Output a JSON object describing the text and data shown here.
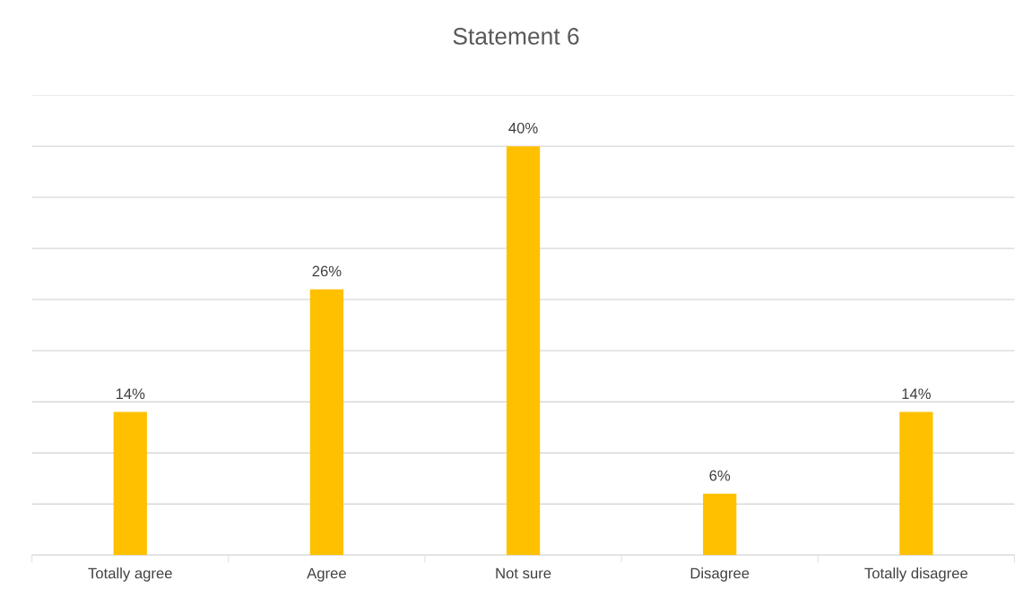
{
  "chart_data": {
    "type": "bar",
    "title": "Statement 6",
    "categories": [
      "Totally agree",
      "Agree",
      "Not sure",
      "Disagree",
      "Totally disagree"
    ],
    "values": [
      14,
      26,
      40,
      6,
      14
    ],
    "value_labels": [
      "14%",
      "26%",
      "40%",
      "6%",
      "14%"
    ],
    "color": "#ffc000",
    "ylim": [
      0,
      45
    ],
    "yticks": [
      {
        "value": 0,
        "label": null
      },
      {
        "value": 5,
        "label": null
      },
      {
        "value": 10,
        "label": null
      },
      {
        "value": 15,
        "label": null
      },
      {
        "value": 20,
        "label": null
      },
      {
        "value": 25,
        "label": null
      },
      {
        "value": 30,
        "label": null
      },
      {
        "value": 35,
        "label": null
      },
      {
        "value": 40,
        "label": null
      },
      {
        "value": 45,
        "label": null
      }
    ],
    "grid": "y",
    "tick_labels": "x"
  }
}
